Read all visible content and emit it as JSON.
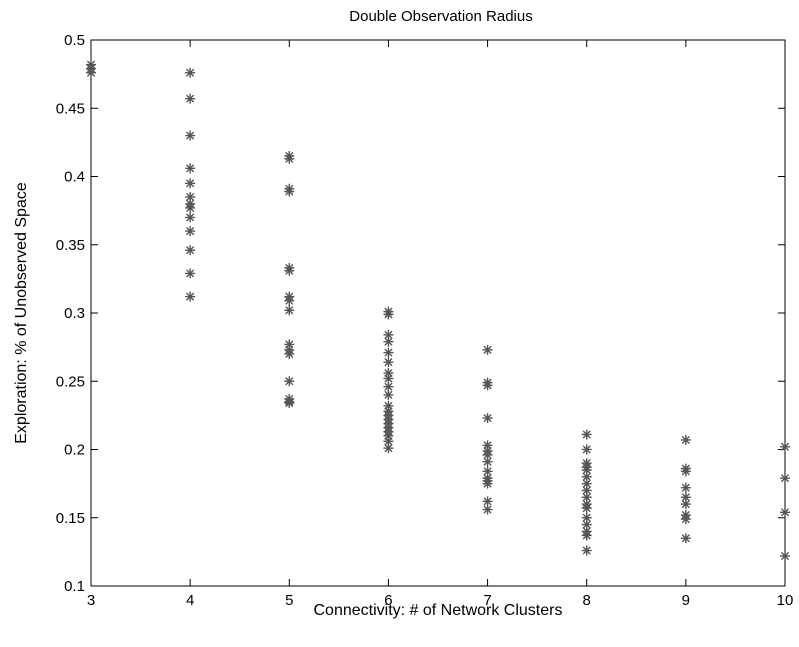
{
  "chart_data": {
    "type": "scatter",
    "title": "Double Observation Radius",
    "xlabel": "Connectivity: # of Network Clusters",
    "ylabel": "Exploration: % of Unobserved Space",
    "xlim": [
      3,
      10
    ],
    "ylim": [
      0.1,
      0.5
    ],
    "xticks": [
      "3",
      "4",
      "5",
      "6",
      "7",
      "8",
      "9",
      "10"
    ],
    "yticks": [
      "0.1",
      "0.15",
      "0.2",
      "0.25",
      "0.3",
      "0.35",
      "0.4",
      "0.45",
      "0.5"
    ],
    "grid": false,
    "marker": "asterisk",
    "marker_color": "#555555",
    "series": [
      {
        "x": [
          3,
          3,
          3,
          4,
          4,
          4,
          4,
          4,
          4,
          4,
          4,
          4,
          4,
          4,
          4,
          4,
          5,
          5,
          5,
          5,
          5,
          5,
          5,
          5,
          5,
          5,
          5,
          5,
          5,
          5,
          5,
          5,
          6,
          6,
          6,
          6,
          6,
          6,
          6,
          6,
          6,
          6,
          6,
          6,
          6,
          6,
          6,
          6,
          6,
          6,
          6,
          6,
          7,
          7,
          7,
          7,
          7,
          7,
          7,
          7,
          7,
          7,
          7,
          7,
          7,
          7,
          8,
          8,
          8,
          8,
          8,
          8,
          8,
          8,
          8,
          8,
          8,
          8,
          8,
          8,
          8,
          8,
          9,
          9,
          9,
          9,
          9,
          9,
          9,
          9,
          9,
          10,
          10,
          10,
          10
        ],
        "y": [
          0.482,
          0.479,
          0.476,
          0.476,
          0.457,
          0.43,
          0.406,
          0.395,
          0.385,
          0.38,
          0.377,
          0.37,
          0.36,
          0.346,
          0.329,
          0.312,
          0.415,
          0.413,
          0.391,
          0.389,
          0.333,
          0.331,
          0.312,
          0.309,
          0.302,
          0.277,
          0.273,
          0.27,
          0.25,
          0.237,
          0.235,
          0.234,
          0.301,
          0.299,
          0.284,
          0.279,
          0.271,
          0.264,
          0.256,
          0.252,
          0.246,
          0.24,
          0.232,
          0.228,
          0.225,
          0.222,
          0.219,
          0.216,
          0.213,
          0.21,
          0.206,
          0.201,
          0.273,
          0.249,
          0.247,
          0.223,
          0.203,
          0.199,
          0.196,
          0.191,
          0.184,
          0.179,
          0.177,
          0.175,
          0.162,
          0.156,
          0.211,
          0.2,
          0.19,
          0.187,
          0.185,
          0.18,
          0.175,
          0.17,
          0.165,
          0.16,
          0.157,
          0.15,
          0.145,
          0.14,
          0.137,
          0.126,
          0.207,
          0.186,
          0.184,
          0.172,
          0.165,
          0.16,
          0.152,
          0.149,
          0.135,
          0.202,
          0.179,
          0.154,
          0.122
        ]
      }
    ]
  }
}
